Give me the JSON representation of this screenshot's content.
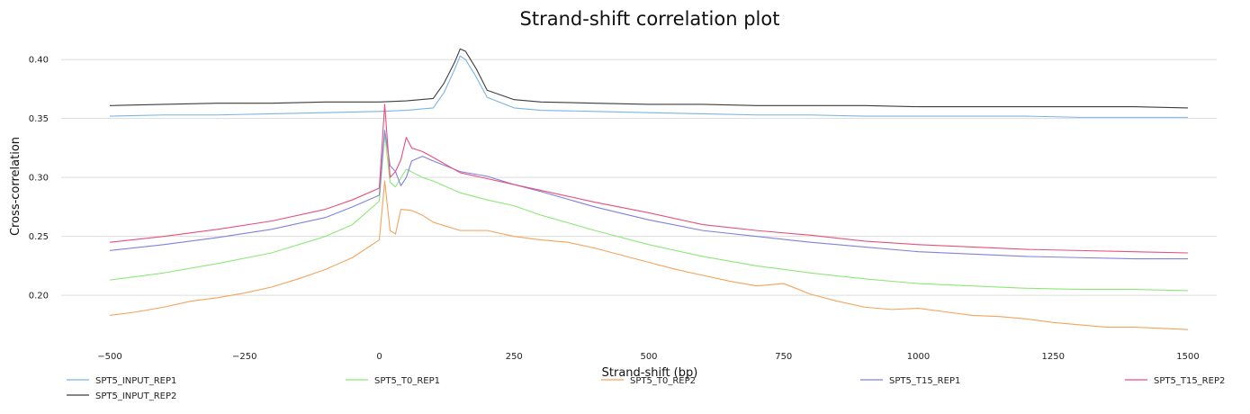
{
  "chart_data": {
    "type": "line",
    "title": "Strand-shift correlation plot",
    "xlabel": "Strand-shift (bp)",
    "ylabel": "Cross-correlation",
    "xlim": [
      -500,
      1500
    ],
    "ylim": [
      0.165,
      0.42
    ],
    "xticks": [
      -500,
      -250,
      0,
      250,
      500,
      750,
      1000,
      1250,
      1500
    ],
    "xtick_labels": [
      "−500",
      "−250",
      "0",
      "250",
      "500",
      "750",
      "1000",
      "1250",
      "1500"
    ],
    "yticks": [
      0.2,
      0.25,
      0.3,
      0.35,
      0.4
    ],
    "ytick_labels": [
      "0.20",
      "0.25",
      "0.30",
      "0.35",
      "0.40"
    ],
    "grid": "horizontal",
    "legend_position": "bottom",
    "series": [
      {
        "name": "SPT5_INPUT_REP1",
        "color": "#7ab3e6",
        "x": [
          -500,
          -400,
          -300,
          -200,
          -100,
          0,
          50,
          100,
          120,
          140,
          150,
          160,
          180,
          200,
          250,
          300,
          400,
          500,
          600,
          700,
          800,
          900,
          1000,
          1100,
          1200,
          1300,
          1400,
          1500
        ],
        "y": [
          0.352,
          0.353,
          0.353,
          0.354,
          0.355,
          0.356,
          0.357,
          0.359,
          0.372,
          0.392,
          0.403,
          0.4,
          0.385,
          0.368,
          0.359,
          0.357,
          0.356,
          0.355,
          0.354,
          0.353,
          0.353,
          0.352,
          0.352,
          0.352,
          0.352,
          0.351,
          0.351,
          0.351
        ]
      },
      {
        "name": "SPT5_INPUT_REP2",
        "color": "#3d3d3d",
        "x": [
          -500,
          -400,
          -300,
          -200,
          -100,
          0,
          50,
          100,
          120,
          140,
          150,
          160,
          180,
          200,
          250,
          300,
          400,
          500,
          600,
          700,
          800,
          900,
          1000,
          1100,
          1200,
          1300,
          1400,
          1500
        ],
        "y": [
          0.361,
          0.362,
          0.363,
          0.363,
          0.364,
          0.364,
          0.365,
          0.367,
          0.38,
          0.398,
          0.409,
          0.407,
          0.392,
          0.374,
          0.366,
          0.364,
          0.363,
          0.362,
          0.362,
          0.361,
          0.361,
          0.361,
          0.36,
          0.36,
          0.36,
          0.36,
          0.36,
          0.359
        ]
      },
      {
        "name": "SPT5_T0_REP1",
        "color": "#8ce878",
        "x": [
          -500,
          -400,
          -300,
          -200,
          -100,
          -50,
          0,
          10,
          20,
          30,
          50,
          80,
          100,
          150,
          200,
          250,
          300,
          400,
          500,
          600,
          700,
          800,
          900,
          1000,
          1100,
          1200,
          1300,
          1400,
          1500
        ],
        "y": [
          0.213,
          0.219,
          0.227,
          0.236,
          0.25,
          0.26,
          0.28,
          0.337,
          0.296,
          0.292,
          0.307,
          0.3,
          0.297,
          0.287,
          0.281,
          0.276,
          0.268,
          0.255,
          0.243,
          0.233,
          0.225,
          0.219,
          0.214,
          0.21,
          0.208,
          0.206,
          0.205,
          0.205,
          0.204
        ]
      },
      {
        "name": "SPT5_T0_REP2",
        "color": "#f4a35c",
        "x": [
          -500,
          -450,
          -400,
          -350,
          -300,
          -250,
          -200,
          -150,
          -100,
          -50,
          0,
          10,
          20,
          30,
          40,
          60,
          80,
          100,
          150,
          200,
          250,
          300,
          350,
          400,
          450,
          500,
          550,
          600,
          650,
          700,
          750,
          800,
          850,
          900,
          950,
          1000,
          1050,
          1100,
          1150,
          1200,
          1250,
          1300,
          1350,
          1400,
          1450,
          1500
        ],
        "y": [
          0.183,
          0.186,
          0.19,
          0.195,
          0.198,
          0.202,
          0.207,
          0.214,
          0.222,
          0.232,
          0.247,
          0.297,
          0.255,
          0.252,
          0.273,
          0.272,
          0.268,
          0.262,
          0.255,
          0.255,
          0.25,
          0.247,
          0.245,
          0.24,
          0.234,
          0.228,
          0.222,
          0.217,
          0.212,
          0.208,
          0.21,
          0.201,
          0.195,
          0.19,
          0.188,
          0.189,
          0.186,
          0.183,
          0.182,
          0.18,
          0.177,
          0.175,
          0.173,
          0.173,
          0.172,
          0.171
        ]
      },
      {
        "name": "SPT5_T15_REP1",
        "color": "#8080e0",
        "x": [
          -500,
          -400,
          -300,
          -200,
          -100,
          -50,
          0,
          10,
          20,
          30,
          40,
          50,
          60,
          80,
          100,
          150,
          200,
          250,
          300,
          400,
          500,
          600,
          700,
          800,
          900,
          1000,
          1100,
          1200,
          1300,
          1400,
          1500
        ],
        "y": [
          0.238,
          0.243,
          0.249,
          0.256,
          0.266,
          0.275,
          0.285,
          0.34,
          0.31,
          0.305,
          0.293,
          0.3,
          0.314,
          0.318,
          0.314,
          0.305,
          0.301,
          0.294,
          0.288,
          0.275,
          0.264,
          0.255,
          0.25,
          0.245,
          0.241,
          0.237,
          0.235,
          0.233,
          0.232,
          0.231,
          0.231
        ]
      },
      {
        "name": "SPT5_T15_REP2",
        "color": "#e8507a",
        "x": [
          -500,
          -400,
          -300,
          -200,
          -100,
          -50,
          0,
          10,
          20,
          30,
          40,
          50,
          60,
          80,
          100,
          150,
          200,
          250,
          300,
          400,
          500,
          600,
          700,
          800,
          900,
          1000,
          1100,
          1200,
          1300,
          1400,
          1500
        ],
        "y": [
          0.245,
          0.25,
          0.256,
          0.263,
          0.273,
          0.281,
          0.291,
          0.362,
          0.3,
          0.305,
          0.315,
          0.334,
          0.325,
          0.322,
          0.317,
          0.304,
          0.299,
          0.294,
          0.289,
          0.279,
          0.27,
          0.26,
          0.255,
          0.251,
          0.246,
          0.243,
          0.241,
          0.239,
          0.238,
          0.237,
          0.236
        ]
      }
    ]
  }
}
